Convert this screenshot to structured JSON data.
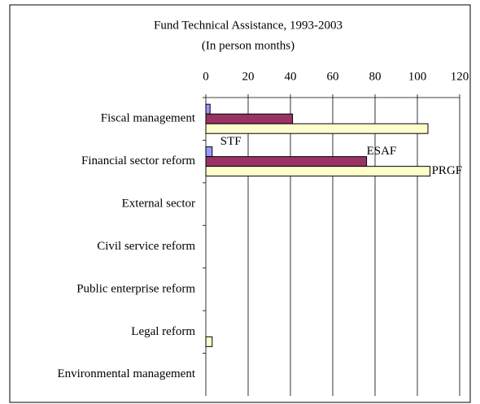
{
  "chart_data": {
    "type": "hbar",
    "title": "Fund Technical Assistance, 1993-2003",
    "subtitle": "(In person months)",
    "categories": [
      "Fiscal management",
      "Financial sector reform",
      "External sector",
      "Civil service reform",
      "Public enterprise reform",
      "Legal reform",
      "Environmental management"
    ],
    "series": [
      {
        "name": "STF",
        "color": "#9999ff",
        "values": [
          2,
          3,
          0,
          0,
          0,
          0,
          0
        ]
      },
      {
        "name": "ESAF",
        "color": "#993366",
        "values": [
          41,
          76,
          0,
          0,
          0,
          0,
          0
        ]
      },
      {
        "name": "PRGF",
        "color": "#ffffcc",
        "values": [
          105,
          106,
          0,
          0,
          0,
          3,
          0
        ]
      }
    ],
    "xlim": [
      0,
      120
    ],
    "xticks": [
      0,
      20,
      40,
      60,
      80,
      100,
      120
    ],
    "grid": true
  }
}
